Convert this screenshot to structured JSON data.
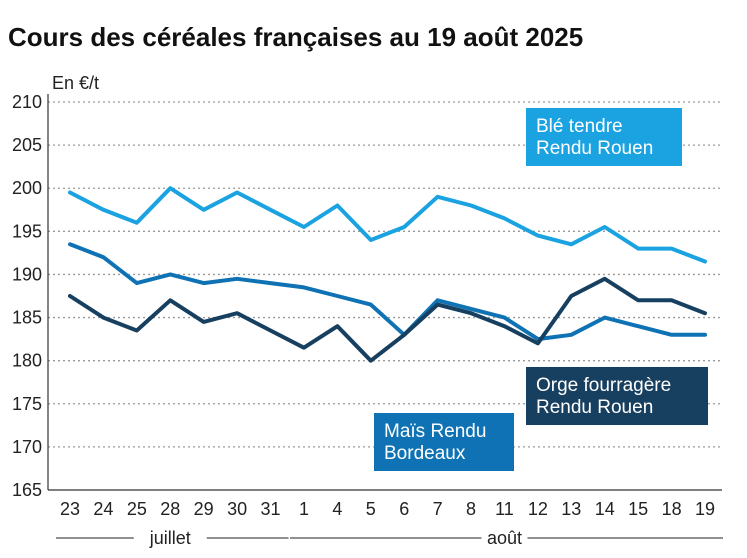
{
  "chart_data": {
    "type": "line",
    "title": "Cours des céréales françaises au 19 août 2025",
    "ylabel": "En €/t",
    "xlabel": "",
    "ylim": [
      165,
      210
    ],
    "yticks": [
      165,
      170,
      175,
      180,
      185,
      190,
      195,
      200,
      205,
      210
    ],
    "grid": true,
    "categories": [
      "23",
      "24",
      "25",
      "28",
      "29",
      "30",
      "31",
      "1",
      "4",
      "5",
      "6",
      "7",
      "8",
      "11",
      "12",
      "13",
      "14",
      "15",
      "18",
      "19"
    ],
    "month_groups": [
      {
        "label": "juillet",
        "from": 0,
        "to": 6
      },
      {
        "label": "août",
        "from": 7,
        "to": 19
      }
    ],
    "series": [
      {
        "name": "Blé tendre Rendu Rouen",
        "label_lines": [
          "Blé tendre",
          "Rendu Rouen"
        ],
        "color": "#1aa3e0",
        "values": [
          199.5,
          197.5,
          196,
          200,
          197.5,
          199.5,
          197.5,
          195.5,
          198,
          194,
          195.5,
          199,
          198,
          196.5,
          194.5,
          193.5,
          195.5,
          193,
          193,
          191.5
        ]
      },
      {
        "name": "Maïs Rendu Bordeaux",
        "label_lines": [
          "Maïs Rendu",
          "Bordeaux"
        ],
        "color": "#0f72b5",
        "values": [
          193.5,
          192,
          189,
          190,
          189,
          189.5,
          189,
          188.5,
          187.5,
          186.5,
          183,
          187,
          186,
          185,
          182.5,
          183,
          185,
          184,
          183,
          183
        ]
      },
      {
        "name": "Orge fourragère Rendu Rouen",
        "label_lines": [
          "Orge fourragère",
          "Rendu Rouen"
        ],
        "color": "#173f5f",
        "values": [
          187.5,
          185,
          183.5,
          187,
          184.5,
          185.5,
          183.5,
          181.5,
          184,
          180,
          183,
          186.5,
          185.5,
          184,
          182,
          187.5,
          189.5,
          187,
          187,
          185.5
        ]
      }
    ]
  }
}
